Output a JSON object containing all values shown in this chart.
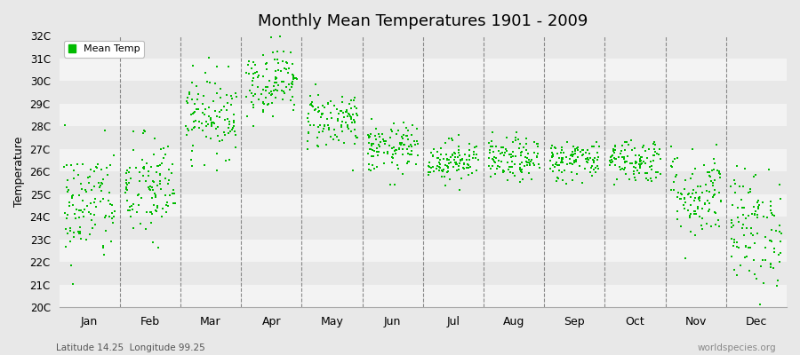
{
  "title": "Monthly Mean Temperatures 1901 - 2009",
  "ylabel": "Temperature",
  "xlabel_labels": [
    "Jan",
    "Feb",
    "Mar",
    "Apr",
    "May",
    "Jun",
    "Jul",
    "Aug",
    "Sep",
    "Oct",
    "Nov",
    "Dec"
  ],
  "subtitle": "Latitude 14.25  Longitude 99.25",
  "watermark": "worldspecies.org",
  "legend_label": "Mean Temp",
  "dot_color": "#00bb00",
  "background_color": "#e8e8e8",
  "plot_bg_color": "#e8e8e8",
  "ylim": [
    20,
    32
  ],
  "ytick_labels": [
    "20C",
    "21C",
    "22C",
    "23C",
    "24C",
    "25C",
    "26C",
    "27C",
    "28C",
    "29C",
    "30C",
    "31C",
    "32C"
  ],
  "ytick_values": [
    20,
    21,
    22,
    23,
    24,
    25,
    26,
    27,
    28,
    29,
    30,
    31,
    32
  ],
  "years": 109,
  "monthly_means": [
    24.5,
    25.2,
    28.5,
    30.0,
    28.3,
    27.0,
    26.5,
    26.5,
    26.5,
    26.5,
    25.0,
    23.5
  ],
  "monthly_stds": [
    1.3,
    1.2,
    0.9,
    0.75,
    0.65,
    0.55,
    0.45,
    0.48,
    0.45,
    0.5,
    1.0,
    1.3
  ],
  "seed": 42
}
